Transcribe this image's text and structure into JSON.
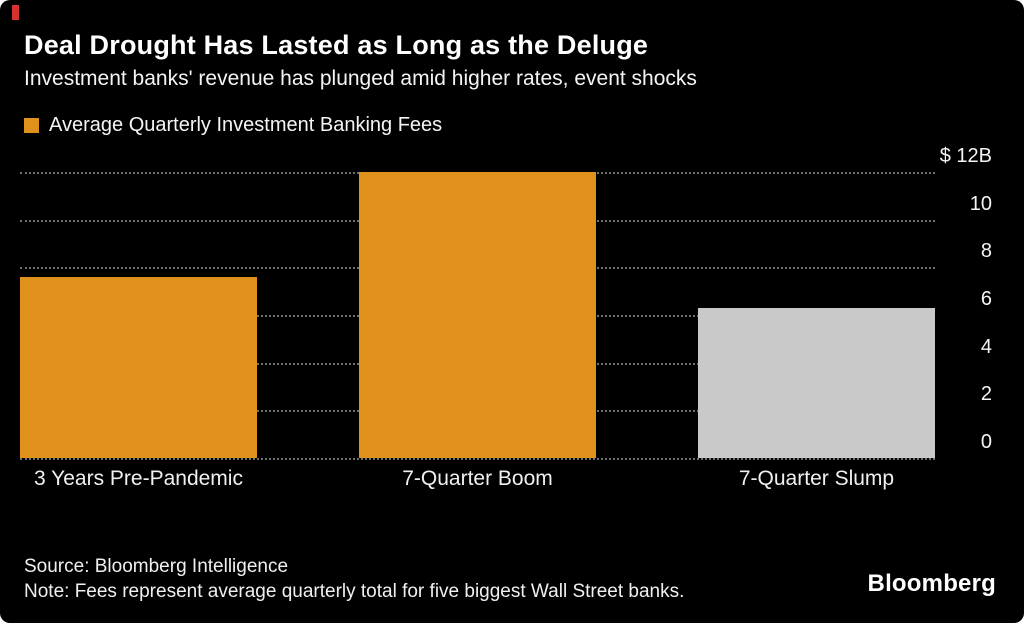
{
  "colors": {
    "accent_red": "#d63230",
    "bar_orange": "#df911c",
    "bar_gray": "#c9c9c9",
    "background": "#000000",
    "gridline": "#6e6e6e"
  },
  "header": {
    "title": "Deal Drought Has Lasted as Long as the Deluge",
    "subtitle": "Investment banks' revenue has plunged amid higher rates, event shocks"
  },
  "legend": {
    "label": "Average Quarterly Investment Banking Fees"
  },
  "chart_data": {
    "type": "bar",
    "title": "Average Quarterly Investment Banking Fees",
    "categories": [
      "3 Years Pre-Pandemic",
      "7-Quarter Boom",
      "7-Quarter Slump"
    ],
    "values": [
      7.6,
      12,
      6.3
    ],
    "unit": "billions USD",
    "bar_colors": [
      "#df911c",
      "#df911c",
      "#c9c9c9"
    ],
    "ylim": [
      0,
      12
    ],
    "ytick_values": [
      12,
      10,
      8,
      6,
      4,
      2,
      0
    ],
    "ytick_labels": [
      "$ 12B",
      "10",
      "8",
      "6",
      "4",
      "2",
      "0"
    ],
    "grid": "dotted horizontal, behind bars",
    "legend_position": "top-left",
    "xlabel": "",
    "ylabel": ""
  },
  "footer": {
    "source": "Source: Bloomberg Intelligence",
    "note": "Note: Fees represent average quarterly total for five biggest Wall Street banks.",
    "logo": "Bloomberg"
  }
}
